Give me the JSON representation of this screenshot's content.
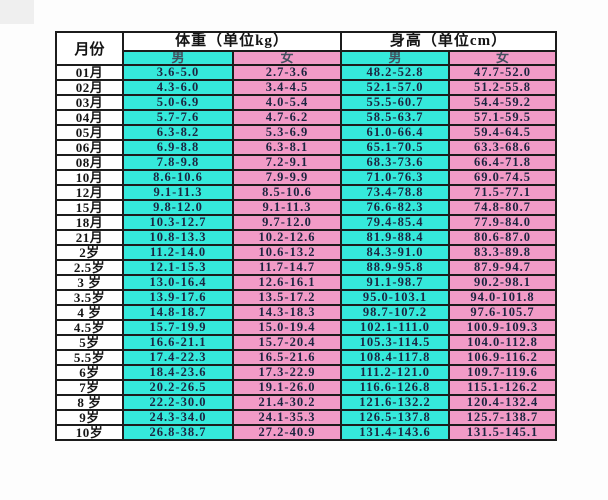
{
  "colors": {
    "male_bg": "#35e9db",
    "female_bg": "#f29bc7",
    "border": "#1c1c1c",
    "cell_text": "#1c2540"
  },
  "table": {
    "corner_header": "月份",
    "weight_group_header": "体重（单位kg）",
    "height_group_header": "身高（单位cm）",
    "male_label_weight": "男",
    "female_label_weight": "女",
    "male_label_height": "男",
    "female_label_height": "女",
    "rows": [
      {
        "label": "01月",
        "cells": [
          "3.6-5.0",
          "2.7-3.6",
          "48.2-52.8",
          "47.7-52.0"
        ]
      },
      {
        "label": "02月",
        "cells": [
          "4.3-6.0",
          "3.4-4.5",
          "52.1-57.0",
          "51.2-55.8"
        ]
      },
      {
        "label": "03月",
        "cells": [
          "5.0-6.9",
          "4.0-5.4",
          "55.5-60.7",
          "54.4-59.2"
        ]
      },
      {
        "label": "04月",
        "cells": [
          "5.7-7.6",
          "4.7-6.2",
          "58.5-63.7",
          "57.1-59.5"
        ]
      },
      {
        "label": "05月",
        "cells": [
          "6.3-8.2",
          "5.3-6.9",
          "61.0-66.4",
          "59.4-64.5"
        ]
      },
      {
        "label": "06月",
        "cells": [
          "6.9-8.8",
          "6.3-8.1",
          "65.1-70.5",
          "63.3-68.6"
        ]
      },
      {
        "label": "08月",
        "cells": [
          "7.8-9.8",
          "7.2-9.1",
          "68.3-73.6",
          "66.4-71.8"
        ]
      },
      {
        "label": "10月",
        "cells": [
          "8.6-10.6",
          "7.9-9.9",
          "71.0-76.3",
          "69.0-74.5"
        ]
      },
      {
        "label": "12月",
        "cells": [
          "9.1-11.3",
          "8.5-10.6",
          "73.4-78.8",
          "71.5-77.1"
        ]
      },
      {
        "label": "15月",
        "cells": [
          "9.8-12.0",
          "9.1-11.3",
          "76.6-82.3",
          "74.8-80.7"
        ]
      },
      {
        "label": "18月",
        "cells": [
          "10.3-12.7",
          "9.7-12.0",
          "79.4-85.4",
          "77.9-84.0"
        ]
      },
      {
        "label": "21月",
        "cells": [
          "10.8-13.3",
          "10.2-12.6",
          "81.9-88.4",
          "80.6-87.0"
        ]
      },
      {
        "label": "2岁",
        "cells": [
          "11.2-14.0",
          "10.6-13.2",
          "84.3-91.0",
          "83.3-89.8"
        ]
      },
      {
        "label": "2.5岁",
        "cells": [
          "12.1-15.3",
          "11.7-14.7",
          "88.9-95.8",
          "87.9-94.7"
        ]
      },
      {
        "label": "3 岁",
        "cells": [
          "13.0-16.4",
          "12.6-16.1",
          "91.1-98.7",
          "90.2-98.1"
        ]
      },
      {
        "label": "3.5岁",
        "cells": [
          "13.9-17.6",
          "13.5-17.2",
          "95.0-103.1",
          "94.0-101.8"
        ]
      },
      {
        "label": "4 岁",
        "cells": [
          "14.8-18.7",
          "14.3-18.3",
          "98.7-107.2",
          "97.6-105.7"
        ]
      },
      {
        "label": "4.5岁",
        "cells": [
          "15.7-19.9",
          "15.0-19.4",
          "102.1-111.0",
          "100.9-109.3"
        ]
      },
      {
        "label": "5岁",
        "cells": [
          "16.6-21.1",
          "15.7-20.4",
          "105.3-114.5",
          "104.0-112.8"
        ]
      },
      {
        "label": "5.5岁",
        "cells": [
          "17.4-22.3",
          "16.5-21.6",
          "108.4-117.8",
          "106.9-116.2"
        ]
      },
      {
        "label": "6岁",
        "cells": [
          "18.4-23.6",
          "17.3-22.9",
          "111.2-121.0",
          "109.7-119.6"
        ]
      },
      {
        "label": "7岁",
        "cells": [
          "20.2-26.5",
          "19.1-26.0",
          "116.6-126.8",
          "115.1-126.2"
        ]
      },
      {
        "label": "8 岁",
        "cells": [
          "22.2-30.0",
          "21.4-30.2",
          "121.6-132.2",
          "120.4-132.4"
        ]
      },
      {
        "label": "9岁",
        "cells": [
          "24.3-34.0",
          "24.1-35.3",
          "126.5-137.8",
          "125.7-138.7"
        ]
      },
      {
        "label": "10岁",
        "cells": [
          "26.8-38.7",
          "27.2-40.9",
          "131.4-143.6",
          "131.5-145.1"
        ]
      }
    ]
  },
  "chart_data": {
    "type": "table",
    "title": "",
    "columns": [
      "月份",
      "体重（单位kg）男",
      "体重（单位kg）女",
      "身高（单位cm）男",
      "身高（单位cm）女"
    ],
    "rows": [
      [
        "01月",
        "3.6-5.0",
        "2.7-3.6",
        "48.2-52.8",
        "47.7-52.0"
      ],
      [
        "02月",
        "4.3-6.0",
        "3.4-4.5",
        "52.1-57.0",
        "51.2-55.8"
      ],
      [
        "03月",
        "5.0-6.9",
        "4.0-5.4",
        "55.5-60.7",
        "54.4-59.2"
      ],
      [
        "04月",
        "5.7-7.6",
        "4.7-6.2",
        "58.5-63.7",
        "57.1-59.5"
      ],
      [
        "05月",
        "6.3-8.2",
        "5.3-6.9",
        "61.0-66.4",
        "59.4-64.5"
      ],
      [
        "06月",
        "6.9-8.8",
        "6.3-8.1",
        "65.1-70.5",
        "63.3-68.6"
      ],
      [
        "08月",
        "7.8-9.8",
        "7.2-9.1",
        "68.3-73.6",
        "66.4-71.8"
      ],
      [
        "10月",
        "8.6-10.6",
        "7.9-9.9",
        "71.0-76.3",
        "69.0-74.5"
      ],
      [
        "12月",
        "9.1-11.3",
        "8.5-10.6",
        "73.4-78.8",
        "71.5-77.1"
      ],
      [
        "15月",
        "9.8-12.0",
        "9.1-11.3",
        "76.6-82.3",
        "74.8-80.7"
      ],
      [
        "18月",
        "10.3-12.7",
        "9.7-12.0",
        "79.4-85.4",
        "77.9-84.0"
      ],
      [
        "21月",
        "10.8-13.3",
        "10.2-12.6",
        "81.9-88.4",
        "80.6-87.0"
      ],
      [
        "2岁",
        "11.2-14.0",
        "10.6-13.2",
        "84.3-91.0",
        "83.3-89.8"
      ],
      [
        "2.5岁",
        "12.1-15.3",
        "11.7-14.7",
        "88.9-95.8",
        "87.9-94.7"
      ],
      [
        "3 岁",
        "13.0-16.4",
        "12.6-16.1",
        "91.1-98.7",
        "90.2-98.1"
      ],
      [
        "3.5岁",
        "13.9-17.6",
        "13.5-17.2",
        "95.0-103.1",
        "94.0-101.8"
      ],
      [
        "4 岁",
        "14.8-18.7",
        "14.3-18.3",
        "98.7-107.2",
        "97.6-105.7"
      ],
      [
        "4.5岁",
        "15.7-19.9",
        "15.0-19.4",
        "102.1-111.0",
        "100.9-109.3"
      ],
      [
        "5岁",
        "16.6-21.1",
        "15.7-20.4",
        "105.3-114.5",
        "104.0-112.8"
      ],
      [
        "5.5岁",
        "17.4-22.3",
        "16.5-21.6",
        "108.4-117.8",
        "106.9-116.2"
      ],
      [
        "6岁",
        "18.4-23.6",
        "17.3-22.9",
        "111.2-121.0",
        "109.7-119.6"
      ],
      [
        "7岁",
        "20.2-26.5",
        "19.1-26.0",
        "116.6-126.8",
        "115.1-126.2"
      ],
      [
        "8 岁",
        "22.2-30.0",
        "21.4-30.2",
        "121.6-132.2",
        "120.4-132.4"
      ],
      [
        "9岁",
        "24.3-34.0",
        "24.1-35.3",
        "126.5-137.8",
        "125.7-138.7"
      ],
      [
        "10岁",
        "26.8-38.7",
        "27.2-40.9",
        "131.4-143.6",
        "131.5-145.1"
      ]
    ]
  }
}
